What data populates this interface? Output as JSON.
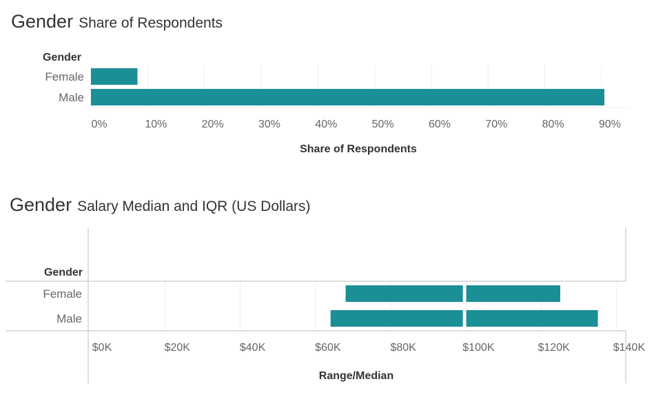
{
  "colors": {
    "bar": "#1a8f96",
    "grid": "#ececec",
    "axis": "#d4d4d4",
    "text": "#333333",
    "tick": "#666666"
  },
  "chart_data": [
    {
      "type": "bar",
      "orientation": "horizontal",
      "title": "Gender",
      "subtitle": "Share of Respondents",
      "row_header": "Gender",
      "categories": [
        "Female",
        "Male"
      ],
      "values": [
        8.2,
        90.5
      ],
      "xlabel": "Share of Respondents",
      "xlim": [
        0,
        95
      ],
      "xticks": [
        0,
        10,
        20,
        30,
        40,
        50,
        60,
        70,
        80,
        90
      ],
      "xtick_labels": [
        "0%",
        "10%",
        "20%",
        "30%",
        "40%",
        "50%",
        "60%",
        "70%",
        "80%",
        "90%"
      ],
      "grid": true
    },
    {
      "type": "bar",
      "orientation": "horizontal",
      "subtype": "range-median",
      "title": "Gender",
      "subtitle": "Salary Median and IQR (US Dollars)",
      "row_header": "Gender",
      "categories": [
        "Female",
        "Male"
      ],
      "q1": [
        68000,
        64000
      ],
      "median": [
        99500,
        99500
      ],
      "q3": [
        125000,
        135000
      ],
      "xlabel": "Range/Median",
      "xlim": [
        -3000,
        143000
      ],
      "xticks": [
        0,
        20000,
        40000,
        60000,
        80000,
        100000,
        120000,
        140000
      ],
      "xtick_labels": [
        "$0K",
        "$20K",
        "$40K",
        "$60K",
        "$80K",
        "$100K",
        "$120K",
        "$140K"
      ],
      "grid": true
    }
  ]
}
